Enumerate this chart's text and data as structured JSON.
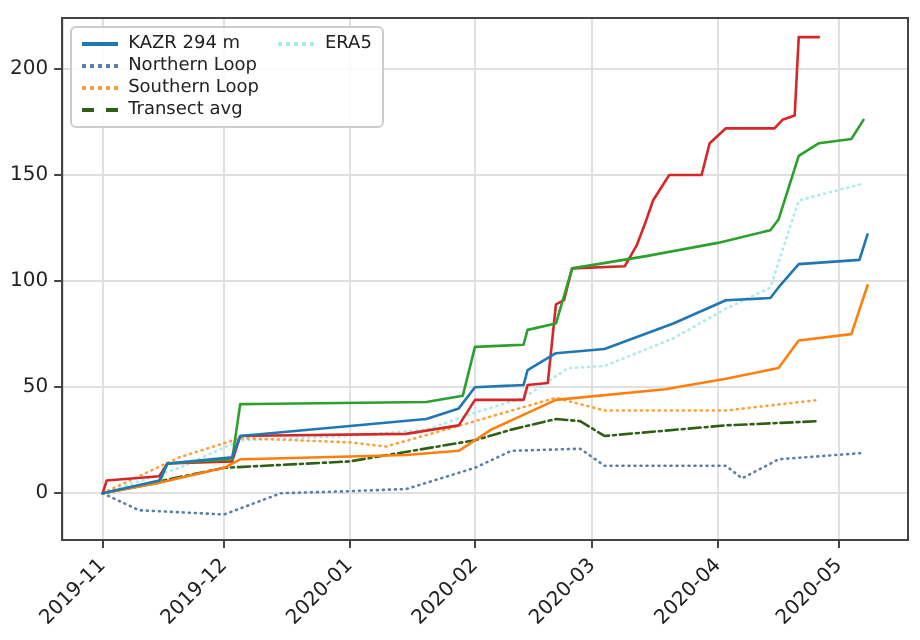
{
  "chart_data": {
    "type": "line",
    "grid": true,
    "legend": "top left",
    "marker": "none",
    "xlim": [
      "2019-10-22",
      "2020-05-18"
    ],
    "xticks": [
      "2019-11",
      "2019-12",
      "2020-01",
      "2020-02",
      "2020-03",
      "2020-04",
      "2020-05"
    ],
    "ylim": [
      -22,
      224
    ],
    "yticks": [
      0,
      50,
      100,
      150,
      200
    ],
    "series": [
      {
        "name": "KAZR 294 m",
        "color": "#1f77b4",
        "line_style": "solid",
        "x": [
          "2019-11-01",
          "2019-11-15",
          "2019-11-17",
          "2019-12-03",
          "2019-12-05",
          "2020-01-20",
          "2020-01-28",
          "2020-02-01",
          "2020-02-13",
          "2020-02-14",
          "2020-02-21",
          "2020-03-04",
          "2020-03-21",
          "2020-04-03",
          "2020-04-14",
          "2020-04-16",
          "2020-04-21",
          "2020-05-06",
          "2020-05-08"
        ],
        "values": [
          0,
          6,
          14,
          17,
          27,
          35,
          40,
          50,
          51,
          58,
          66,
          68,
          80,
          91,
          92,
          97,
          108,
          110,
          122
        ]
      },
      {
        "color": "#ff7f0e",
        "line_style": "solid",
        "x": [
          "2019-11-01",
          "2019-11-15",
          "2019-12-01",
          "2019-12-05",
          "2020-01-15",
          "2020-01-28",
          "2020-02-01",
          "2020-02-05",
          "2020-02-21",
          "2020-03-19",
          "2020-04-03",
          "2020-04-16",
          "2020-04-21",
          "2020-05-04",
          "2020-05-08"
        ],
        "values": [
          0,
          5,
          12,
          16,
          18,
          20,
          25,
          30,
          44,
          49,
          54,
          59,
          72,
          75,
          98
        ]
      },
      {
        "color": "#2ca02c",
        "line_style": "solid",
        "x": [
          "2019-11-01",
          "2019-11-15",
          "2019-11-17",
          "2019-12-03",
          "2019-12-05",
          "2020-01-20",
          "2020-01-29",
          "2020-02-01",
          "2020-02-13",
          "2020-02-14",
          "2020-02-21",
          "2020-02-25",
          "2020-03-15",
          "2020-04-01",
          "2020-04-14",
          "2020-04-16",
          "2020-04-21",
          "2020-04-26",
          "2020-05-04",
          "2020-05-07"
        ],
        "values": [
          0,
          5,
          14,
          16,
          42,
          43,
          46,
          69,
          70,
          77,
          80,
          106,
          112,
          118,
          124,
          129,
          159,
          165,
          167,
          176
        ]
      },
      {
        "color": "#d62728",
        "line_style": "solid",
        "x": [
          "2019-11-01",
          "2019-11-02",
          "2019-11-15",
          "2019-11-17",
          "2019-12-03",
          "2019-12-05",
          "2020-01-15",
          "2020-01-28",
          "2020-02-01",
          "2020-02-13",
          "2020-02-14",
          "2020-02-19",
          "2020-02-21",
          "2020-02-23",
          "2020-02-25",
          "2020-03-09",
          "2020-03-12",
          "2020-03-14",
          "2020-03-16",
          "2020-03-20",
          "2020-03-28",
          "2020-03-30",
          "2020-04-03",
          "2020-04-15",
          "2020-04-17",
          "2020-04-20",
          "2020-04-21",
          "2020-04-26"
        ],
        "values": [
          0,
          6,
          8,
          14,
          15,
          27,
          28,
          32,
          44,
          44,
          51,
          52,
          89,
          91,
          106,
          107,
          117,
          127,
          138,
          150,
          150,
          165,
          172,
          172,
          176,
          178,
          215,
          215
        ]
      },
      {
        "name": "Northern Loop",
        "color": "#5b7fa6",
        "line_style": "dotted",
        "x": [
          "2019-11-01",
          "2019-11-10",
          "2019-12-01",
          "2019-12-15",
          "2020-01-01",
          "2020-01-15",
          "2020-02-01",
          "2020-02-10",
          "2020-02-27",
          "2020-03-04",
          "2020-04-03",
          "2020-04-07",
          "2020-04-16",
          "2020-05-07"
        ],
        "values": [
          0,
          -8,
          -10,
          0,
          1,
          2,
          12,
          20,
          21,
          13,
          13,
          7,
          16,
          19
        ]
      },
      {
        "name": "Southern Loop",
        "color": "#ff9f3a",
        "line_style": "dotted",
        "x": [
          "2019-11-01",
          "2019-11-20",
          "2019-12-05",
          "2020-01-01",
          "2020-01-10",
          "2020-02-01",
          "2020-02-21",
          "2020-03-04",
          "2020-04-03",
          "2020-04-26"
        ],
        "values": [
          0,
          17,
          26,
          24,
          22,
          34,
          45,
          39,
          39,
          44
        ]
      },
      {
        "name": "Transect avg",
        "color": "#2f5f16",
        "line_style": "dashdot",
        "x": [
          "2019-11-01",
          "2019-12-01",
          "2020-01-01",
          "2020-02-01",
          "2020-02-10",
          "2020-02-21",
          "2020-02-27",
          "2020-03-04",
          "2020-04-03",
          "2020-04-26"
        ],
        "values": [
          0,
          12,
          15,
          25,
          30,
          35,
          34,
          27,
          32,
          34
        ]
      },
      {
        "name": "ERA5",
        "color": "#a8ecec",
        "line_style": "dotted",
        "x": [
          "2019-11-01",
          "2019-11-20",
          "2019-12-05",
          "2020-01-01",
          "2020-01-20",
          "2020-02-01",
          "2020-02-13",
          "2020-02-24",
          "2020-03-04",
          "2020-03-21",
          "2020-04-03",
          "2020-04-14",
          "2020-04-21",
          "2020-05-07"
        ],
        "values": [
          0,
          12,
          25,
          27,
          30,
          38,
          45,
          59,
          60,
          73,
          87,
          97,
          138,
          146
        ]
      }
    ]
  }
}
